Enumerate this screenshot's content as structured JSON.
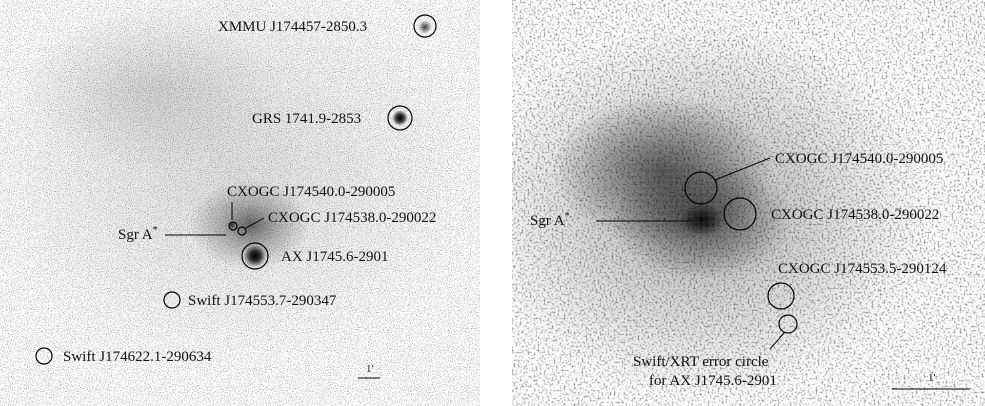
{
  "left_panel": {
    "labels": {
      "xmmu": "XMMU J174457-2850.3",
      "grs": "GRS 1741.9-2853",
      "cxo1": "CXOGC J174540.0-290005",
      "cxo2": "CXOGC J174538.0-290022",
      "sgra": "Sgr A",
      "sgra_sup": "*",
      "ax": "AX J1745.6-2901",
      "swift1": "Swift J174553.7-290347",
      "swift2": "Swift J174622.1-290634"
    },
    "scale_label": "1'"
  },
  "right_panel": {
    "labels": {
      "cxo1": "CXOGC J174540.0-290005",
      "cxo2": "CXOGC J174538.0-290022",
      "cxo3": "CXOGC J174553.5-290124",
      "sgra": "Sgr A",
      "sgra_sup": "*",
      "xrt_line1": "Swift/XRT error circle",
      "xrt_line2": "for AX J1745.6-2901"
    },
    "scale_label": "1'"
  }
}
